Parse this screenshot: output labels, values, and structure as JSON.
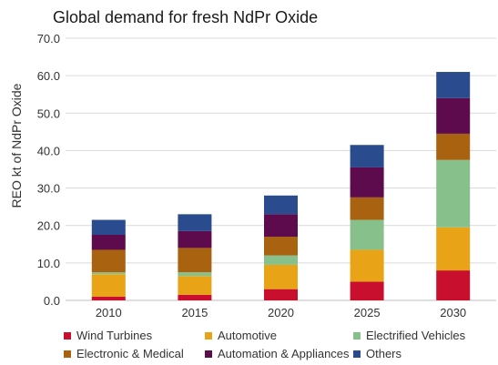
{
  "chart_data": {
    "type": "bar",
    "stacked": true,
    "title": "Global demand for fresh NdPr Oxide",
    "xlabel": "",
    "ylabel": "REO kt of NdPr Oxide",
    "ylim": [
      0,
      70
    ],
    "yticks": [
      "0.0",
      "10.0",
      "20.0",
      "30.0",
      "40.0",
      "50.0",
      "60.0",
      "70.0"
    ],
    "grid": true,
    "legend_position": "bottom",
    "categories": [
      "2010",
      "2015",
      "2020",
      "2025",
      "2030"
    ],
    "series": [
      {
        "name": "Wind Turbines",
        "color": "#C8102E",
        "values": [
          1.0,
          1.5,
          3.0,
          5.0,
          8.0
        ]
      },
      {
        "name": "Automotive",
        "color": "#E8A317",
        "values": [
          6.0,
          5.0,
          6.5,
          8.5,
          11.5
        ]
      },
      {
        "name": "Electrified Vehicles",
        "color": "#88C08C",
        "values": [
          0.5,
          1.0,
          2.5,
          8.0,
          18.0
        ]
      },
      {
        "name": "Electronic & Medical",
        "color": "#A9620F",
        "values": [
          6.0,
          6.5,
          5.0,
          6.0,
          7.0
        ]
      },
      {
        "name": "Automation & Appliances",
        "color": "#5E0B4D",
        "values": [
          4.0,
          4.5,
          6.0,
          8.0,
          9.5
        ]
      },
      {
        "name": "Others",
        "color": "#2A4B8D",
        "values": [
          4.0,
          4.5,
          5.0,
          6.0,
          7.0
        ]
      }
    ]
  }
}
